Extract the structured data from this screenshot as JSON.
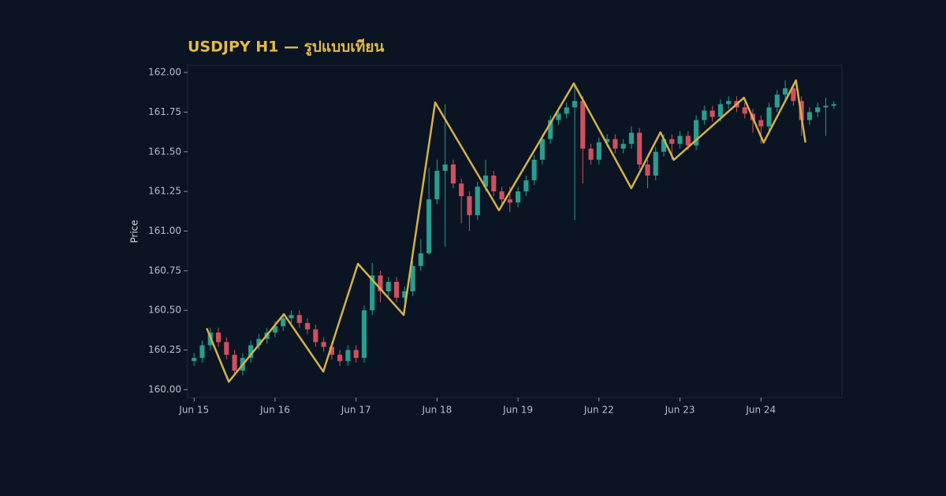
{
  "chart_data": {
    "type": "candlestick",
    "title": "USDJPY H1 — รูปแบบเทียน",
    "y_label": "Price",
    "up_color": "#2a9d8f",
    "down_color": "#d0505e",
    "x": [
      0,
      1,
      2,
      3,
      4,
      5,
      6,
      7,
      8,
      9,
      10,
      11,
      12,
      13,
      14,
      15,
      16,
      17,
      18,
      19,
      20,
      21,
      22,
      23,
      24,
      25,
      26,
      27,
      28,
      29,
      30,
      31,
      32,
      33,
      34,
      35,
      36,
      37,
      38,
      39,
      40,
      41,
      42,
      43,
      44,
      45,
      46,
      47,
      48,
      49,
      50,
      51,
      52,
      53,
      54,
      55,
      56,
      57,
      58,
      59,
      60,
      61,
      62,
      63,
      64,
      65,
      66,
      67,
      68,
      69,
      70,
      71,
      72,
      73,
      74,
      75,
      76,
      77,
      78,
      79
    ],
    "open": [
      160.18,
      160.2,
      160.28,
      160.36,
      160.3,
      160.22,
      160.12,
      160.2,
      160.28,
      160.32,
      160.36,
      160.4,
      160.45,
      160.47,
      160.42,
      160.38,
      160.3,
      160.27,
      160.22,
      160.18,
      160.25,
      160.2,
      160.5,
      160.72,
      160.62,
      160.68,
      160.58,
      160.62,
      160.78,
      160.86,
      161.2,
      161.38,
      161.42,
      161.3,
      161.22,
      161.1,
      161.28,
      161.35,
      161.25,
      161.2,
      161.18,
      161.25,
      161.32,
      161.45,
      161.58,
      161.7,
      161.74,
      161.78,
      161.82,
      161.52,
      161.45,
      161.56,
      161.58,
      161.52,
      161.55,
      161.62,
      161.42,
      161.35,
      161.5,
      161.58,
      161.55,
      161.6,
      161.54,
      161.7,
      161.76,
      161.72,
      161.8,
      161.82,
      161.78,
      161.74,
      161.7,
      161.66,
      161.78,
      161.86,
      161.9,
      161.82,
      161.7,
      161.75,
      161.78,
      161.79
    ],
    "high": [
      160.23,
      160.31,
      160.39,
      160.39,
      160.33,
      160.25,
      160.23,
      160.31,
      160.35,
      160.39,
      160.43,
      160.48,
      160.5,
      160.5,
      160.45,
      160.41,
      160.33,
      160.3,
      160.25,
      160.28,
      160.28,
      160.53,
      160.8,
      160.75,
      160.71,
      160.71,
      160.65,
      160.81,
      160.95,
      161.4,
      161.45,
      161.8,
      161.45,
      161.33,
      161.25,
      161.31,
      161.45,
      161.38,
      161.28,
      161.28,
      161.28,
      161.35,
      161.48,
      161.61,
      161.73,
      161.77,
      161.81,
      161.93,
      161.85,
      161.55,
      161.59,
      161.61,
      161.61,
      161.58,
      161.66,
      161.65,
      161.45,
      161.53,
      161.61,
      161.61,
      161.63,
      161.63,
      161.73,
      161.79,
      161.79,
      161.83,
      161.85,
      161.85,
      161.81,
      161.77,
      161.73,
      161.81,
      161.89,
      161.95,
      161.93,
      161.85,
      161.78,
      161.81,
      161.84,
      161.82
    ],
    "low": [
      160.15,
      160.17,
      160.25,
      160.27,
      160.19,
      160.09,
      160.09,
      160.17,
      160.25,
      160.29,
      160.33,
      160.37,
      160.42,
      160.39,
      160.35,
      160.27,
      160.24,
      160.19,
      160.15,
      160.15,
      160.17,
      160.17,
      160.47,
      160.55,
      160.59,
      160.55,
      160.55,
      160.59,
      160.75,
      160.85,
      161.17,
      160.9,
      161.27,
      161.05,
      161.0,
      161.07,
      161.25,
      161.22,
      161.17,
      161.12,
      161.15,
      161.22,
      161.29,
      161.42,
      161.55,
      161.67,
      161.71,
      161.07,
      161.3,
      161.42,
      161.42,
      161.53,
      161.49,
      161.49,
      161.52,
      161.39,
      161.27,
      161.32,
      161.47,
      161.45,
      161.52,
      161.51,
      161.51,
      161.67,
      161.69,
      161.69,
      161.77,
      161.75,
      161.71,
      161.62,
      161.55,
      161.63,
      161.75,
      161.83,
      161.79,
      161.6,
      161.67,
      161.72,
      161.6,
      161.77
    ],
    "close": [
      160.2,
      160.28,
      160.36,
      160.3,
      160.22,
      160.12,
      160.2,
      160.28,
      160.32,
      160.36,
      160.4,
      160.45,
      160.47,
      160.42,
      160.38,
      160.3,
      160.27,
      160.22,
      160.18,
      160.25,
      160.2,
      160.5,
      160.72,
      160.62,
      160.68,
      160.58,
      160.62,
      160.78,
      160.86,
      161.2,
      161.38,
      161.42,
      161.3,
      161.22,
      161.1,
      161.28,
      161.35,
      161.25,
      161.2,
      161.18,
      161.25,
      161.32,
      161.45,
      161.58,
      161.7,
      161.74,
      161.78,
      161.82,
      161.52,
      161.45,
      161.56,
      161.58,
      161.52,
      161.55,
      161.62,
      161.42,
      161.35,
      161.5,
      161.58,
      161.55,
      161.6,
      161.54,
      161.7,
      161.76,
      161.72,
      161.8,
      161.82,
      161.78,
      161.74,
      161.7,
      161.66,
      161.78,
      161.86,
      161.9,
      161.82,
      161.7,
      161.75,
      161.78,
      161.79,
      161.8
    ],
    "zigzag": {
      "color": "#d4b24a",
      "x": [
        1.56,
        4.28,
        11.09,
        15.95,
        20.23,
        25.88,
        29.77,
        37.65,
        46.89,
        53.99,
        57.59,
        59.24,
        67.9,
        70.33,
        74.32,
        75.49
      ],
      "values": [
        160.387,
        160.05,
        160.476,
        160.114,
        160.794,
        160.471,
        161.811,
        161.131,
        161.931,
        161.27,
        161.623,
        161.449,
        161.841,
        161.558,
        161.95,
        161.558
      ]
    },
    "xlim": [
      -0.8,
      80
    ],
    "xticks": [
      {
        "value": 0,
        "label": "Jun 15"
      },
      {
        "value": 10,
        "label": "Jun 16"
      },
      {
        "value": 20,
        "label": "Jun 17"
      },
      {
        "value": 30,
        "label": "Jun 18"
      },
      {
        "value": 40,
        "label": "Jun 19"
      },
      {
        "value": 50,
        "label": "Jun 22"
      },
      {
        "value": 60,
        "label": "Jun 23"
      },
      {
        "value": 70,
        "label": "Jun 24"
      }
    ],
    "ylim": [
      159.95,
      162.045
    ],
    "yticks": [
      {
        "value": 160,
        "label": "160.00"
      },
      {
        "value": 160.25,
        "label": "160.25"
      },
      {
        "value": 160.5,
        "label": "160.50"
      },
      {
        "value": 160.75,
        "label": "160.75"
      },
      {
        "value": 161,
        "label": "161.00"
      },
      {
        "value": 161.25,
        "label": "161.25"
      },
      {
        "value": 161.5,
        "label": "161.50"
      },
      {
        "value": 161.75,
        "label": "161.75"
      },
      {
        "value": 162,
        "label": "162.00"
      }
    ]
  }
}
